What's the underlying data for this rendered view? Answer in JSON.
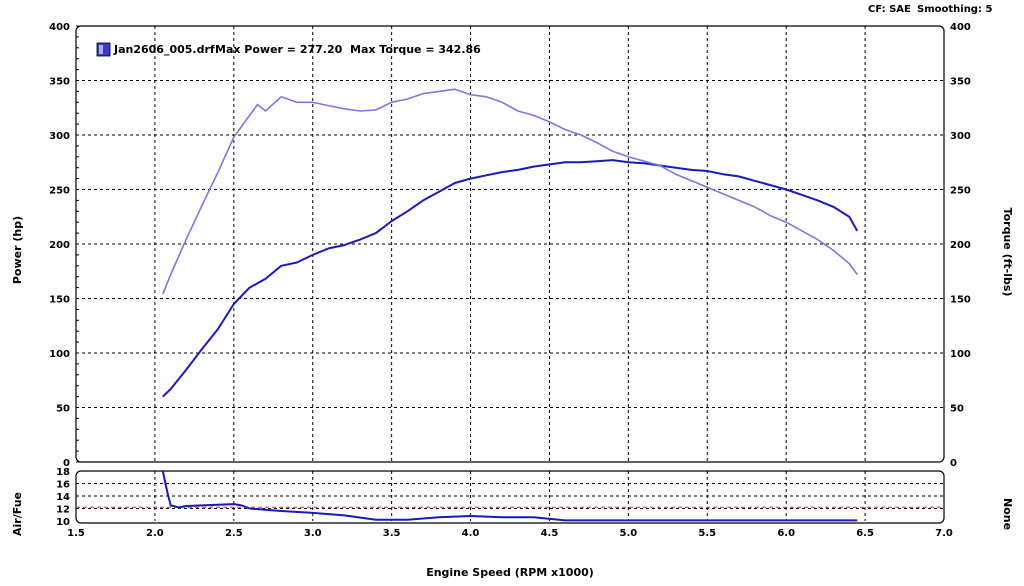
{
  "header": {
    "cf": "CF: SAE",
    "smoothing": "Smoothing: 5"
  },
  "legend": {
    "file": "Jan2606_005.drf",
    "max_power": "Max Power = 277.20",
    "max_torque": "Max Torque = 342.86"
  },
  "colors": {
    "power": "#1a1ab8",
    "torque": "#7a7ae0",
    "grid": "#000000",
    "af_ref": "#cc3333"
  },
  "chart_data": [
    {
      "type": "line",
      "xlabel": "Engine Speed (RPM x1000)",
      "ylabel": "Power (hp)",
      "y2label": "Torque (ft-lbs)",
      "xlim": [
        1.5,
        7.0
      ],
      "ylim": [
        0,
        400
      ],
      "y2lim": [
        0,
        400
      ],
      "xticks": [
        "1.5",
        "2.0",
        "2.5",
        "3.0",
        "3.5",
        "4.0",
        "4.5",
        "5.0",
        "5.5",
        "6.0",
        "6.5",
        "7.0"
      ],
      "yticks": [
        "0",
        "50",
        "100",
        "150",
        "200",
        "250",
        "300",
        "350",
        "400"
      ],
      "y2ticks": [
        "0",
        "50",
        "100",
        "150",
        "200",
        "250",
        "300",
        "350",
        "400"
      ],
      "grid": true,
      "series": [
        {
          "name": "Power",
          "x": [
            2.05,
            2.1,
            2.2,
            2.3,
            2.4,
            2.5,
            2.6,
            2.7,
            2.8,
            2.9,
            3.0,
            3.1,
            3.2,
            3.3,
            3.4,
            3.5,
            3.6,
            3.7,
            3.8,
            3.9,
            4.0,
            4.1,
            4.2,
            4.3,
            4.4,
            4.5,
            4.6,
            4.7,
            4.8,
            4.9,
            5.0,
            5.1,
            5.2,
            5.3,
            5.4,
            5.5,
            5.6,
            5.7,
            5.8,
            5.9,
            6.0,
            6.1,
            6.2,
            6.3,
            6.4,
            6.45
          ],
          "values": [
            60,
            67,
            85,
            104,
            122,
            145,
            160,
            168,
            180,
            183,
            190,
            196,
            199,
            204,
            210,
            221,
            230,
            240,
            248,
            256,
            260,
            263,
            266,
            268,
            271,
            273,
            275,
            275,
            276,
            277,
            275,
            274,
            272,
            270,
            268,
            267,
            264,
            262,
            258,
            254,
            250,
            245,
            240,
            234,
            225,
            212
          ]
        },
        {
          "name": "Torque",
          "x": [
            2.05,
            2.1,
            2.2,
            2.3,
            2.4,
            2.5,
            2.6,
            2.65,
            2.7,
            2.8,
            2.9,
            3.0,
            3.1,
            3.2,
            3.3,
            3.4,
            3.5,
            3.6,
            3.7,
            3.8,
            3.9,
            4.0,
            4.1,
            4.2,
            4.3,
            4.4,
            4.5,
            4.6,
            4.7,
            4.8,
            4.9,
            5.0,
            5.1,
            5.2,
            5.3,
            5.4,
            5.5,
            5.6,
            5.7,
            5.8,
            5.9,
            6.0,
            6.1,
            6.2,
            6.3,
            6.4,
            6.45
          ],
          "values": [
            154,
            172,
            205,
            236,
            266,
            298,
            318,
            328,
            322,
            335,
            330,
            330,
            327,
            324,
            322,
            323,
            330,
            333,
            338,
            340,
            342,
            337,
            335,
            330,
            322,
            318,
            312,
            305,
            300,
            293,
            285,
            280,
            276,
            272,
            264,
            258,
            252,
            246,
            240,
            234,
            226,
            220,
            212,
            204,
            194,
            182,
            172
          ]
        }
      ]
    },
    {
      "type": "line",
      "xlabel": "Engine Speed (RPM x1000)",
      "ylabel": "Air/Fue",
      "y2label": "None",
      "xlim": [
        1.5,
        7.0
      ],
      "ylim": [
        10,
        18
      ],
      "yticks": [
        "10",
        "12",
        "14",
        "16",
        "18"
      ],
      "reference": 12.2,
      "series": [
        {
          "name": "Air/Fuel",
          "x": [
            2.05,
            2.08,
            2.1,
            2.15,
            2.2,
            2.3,
            2.4,
            2.5,
            2.55,
            2.6,
            2.7,
            2.8,
            3.0,
            3.2,
            3.4,
            3.6,
            3.8,
            4.0,
            4.2,
            4.4,
            4.6,
            4.8,
            5.0,
            5.5,
            6.0,
            6.45
          ],
          "values": [
            18,
            14.5,
            12.5,
            12.2,
            12.4,
            12.5,
            12.6,
            12.7,
            12.5,
            12.0,
            11.8,
            11.6,
            11.3,
            10.9,
            10.2,
            10.2,
            10.6,
            10.8,
            10.6,
            10.6,
            10.1,
            10.1,
            10.1,
            10.1,
            10.1,
            10.1
          ]
        }
      ]
    }
  ]
}
